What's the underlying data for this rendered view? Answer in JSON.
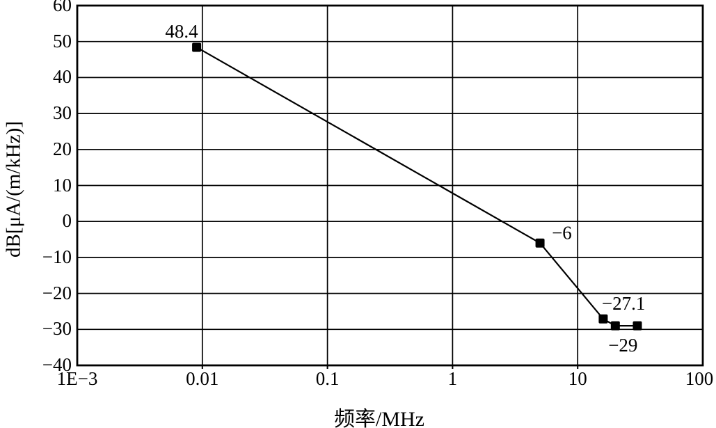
{
  "colors": {
    "background": "#ffffff",
    "axis": "#000000",
    "grid": "#000000",
    "series": "#000000",
    "text": "#000000"
  },
  "chart_data": {
    "type": "line",
    "title": "",
    "xlabel": "频率/MHz",
    "ylabel": "dB[μA/(m/kHz)]",
    "x_scale": "log",
    "y_scale": "linear",
    "xlim": [
      0.001,
      100
    ],
    "ylim": [
      -40,
      60
    ],
    "grid": true,
    "legend": false,
    "x_ticks": [
      {
        "value": 0.001,
        "label": "1E−3"
      },
      {
        "value": 0.01,
        "label": "0.01"
      },
      {
        "value": 0.1,
        "label": "0.1"
      },
      {
        "value": 1,
        "label": "1"
      },
      {
        "value": 10,
        "label": "10"
      },
      {
        "value": 100,
        "label": "100"
      }
    ],
    "y_ticks": [
      {
        "value": 60,
        "label": "60"
      },
      {
        "value": 50,
        "label": "50"
      },
      {
        "value": 40,
        "label": "40"
      },
      {
        "value": 30,
        "label": "30"
      },
      {
        "value": 20,
        "label": "20"
      },
      {
        "value": 10,
        "label": "10"
      },
      {
        "value": 0,
        "label": "0"
      },
      {
        "value": -10,
        "label": "−10"
      },
      {
        "value": -20,
        "label": "−20"
      },
      {
        "value": -30,
        "label": "−30"
      },
      {
        "value": -40,
        "label": "−40"
      }
    ],
    "series": [
      {
        "marker": "square",
        "color": "#000000",
        "points": [
          {
            "x": 0.009,
            "y": 48.4,
            "label": "48.4",
            "label_pos": "above-left"
          },
          {
            "x": 5,
            "y": -6,
            "label": "−6",
            "label_pos": "right"
          },
          {
            "x": 16,
            "y": -27.1,
            "label": "−27.1",
            "label_pos": "above-right"
          },
          {
            "x": 20,
            "y": -29,
            "label": "−29",
            "label_pos": "below"
          },
          {
            "x": 30,
            "y": -29,
            "label": "",
            "label_pos": ""
          }
        ]
      }
    ]
  }
}
